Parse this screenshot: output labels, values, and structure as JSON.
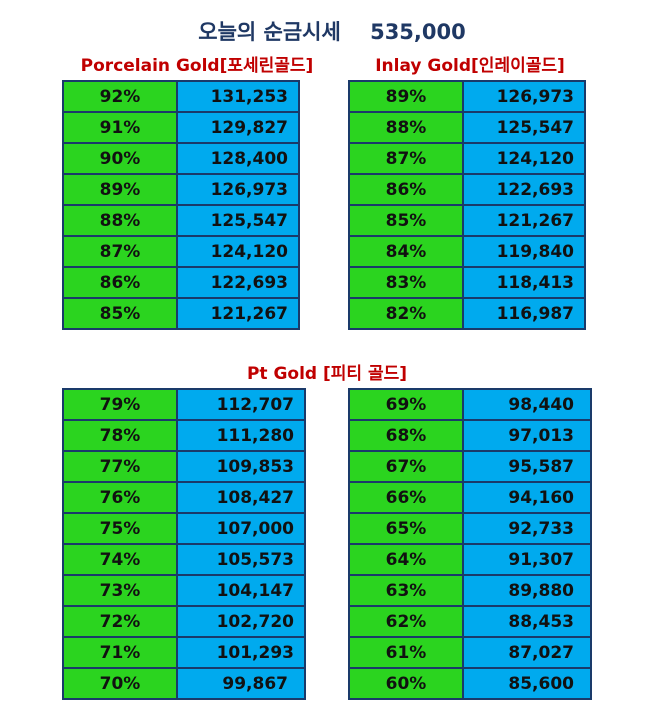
{
  "title": "오늘의 순금시세",
  "price": "535,000",
  "sections": {
    "porcelain": {
      "heading": "Porcelain Gold[포세린골드]"
    },
    "inlay": {
      "heading": "Inlay Gold[인레이골드]"
    },
    "pt": {
      "heading": "Pt Gold [피티 골드]"
    }
  },
  "tables": {
    "porcelain": [
      {
        "pct": "92%",
        "value": "131,253"
      },
      {
        "pct": "91%",
        "value": "129,827"
      },
      {
        "pct": "90%",
        "value": "128,400"
      },
      {
        "pct": "89%",
        "value": "126,973"
      },
      {
        "pct": "88%",
        "value": "125,547"
      },
      {
        "pct": "87%",
        "value": "124,120"
      },
      {
        "pct": "86%",
        "value": "122,693"
      },
      {
        "pct": "85%",
        "value": "121,267"
      }
    ],
    "inlay": [
      {
        "pct": "89%",
        "value": "126,973"
      },
      {
        "pct": "88%",
        "value": "125,547"
      },
      {
        "pct": "87%",
        "value": "124,120"
      },
      {
        "pct": "86%",
        "value": "122,693"
      },
      {
        "pct": "85%",
        "value": "121,267"
      },
      {
        "pct": "84%",
        "value": "119,840"
      },
      {
        "pct": "83%",
        "value": "118,413"
      },
      {
        "pct": "82%",
        "value": "116,987"
      }
    ],
    "pt_left": [
      {
        "pct": "79%",
        "value": "112,707"
      },
      {
        "pct": "78%",
        "value": "111,280"
      },
      {
        "pct": "77%",
        "value": "109,853"
      },
      {
        "pct": "76%",
        "value": "108,427"
      },
      {
        "pct": "75%",
        "value": "107,000"
      },
      {
        "pct": "74%",
        "value": "105,573"
      },
      {
        "pct": "73%",
        "value": "104,147"
      },
      {
        "pct": "72%",
        "value": "102,720"
      },
      {
        "pct": "71%",
        "value": "101,293"
      },
      {
        "pct": "70%",
        "value": "99,867"
      }
    ],
    "pt_right": [
      {
        "pct": "69%",
        "value": "98,440"
      },
      {
        "pct": "68%",
        "value": "97,013"
      },
      {
        "pct": "67%",
        "value": "95,587"
      },
      {
        "pct": "66%",
        "value": "94,160"
      },
      {
        "pct": "65%",
        "value": "92,733"
      },
      {
        "pct": "64%",
        "value": "91,307"
      },
      {
        "pct": "63%",
        "value": "89,880"
      },
      {
        "pct": "62%",
        "value": "88,453"
      },
      {
        "pct": "61%",
        "value": "87,027"
      },
      {
        "pct": "60%",
        "value": "85,600"
      }
    ]
  },
  "colors": {
    "pct_cell": "#2bd41f",
    "value_cell": "#00aaee",
    "heading": "#c00000",
    "title": "#1f3864"
  }
}
